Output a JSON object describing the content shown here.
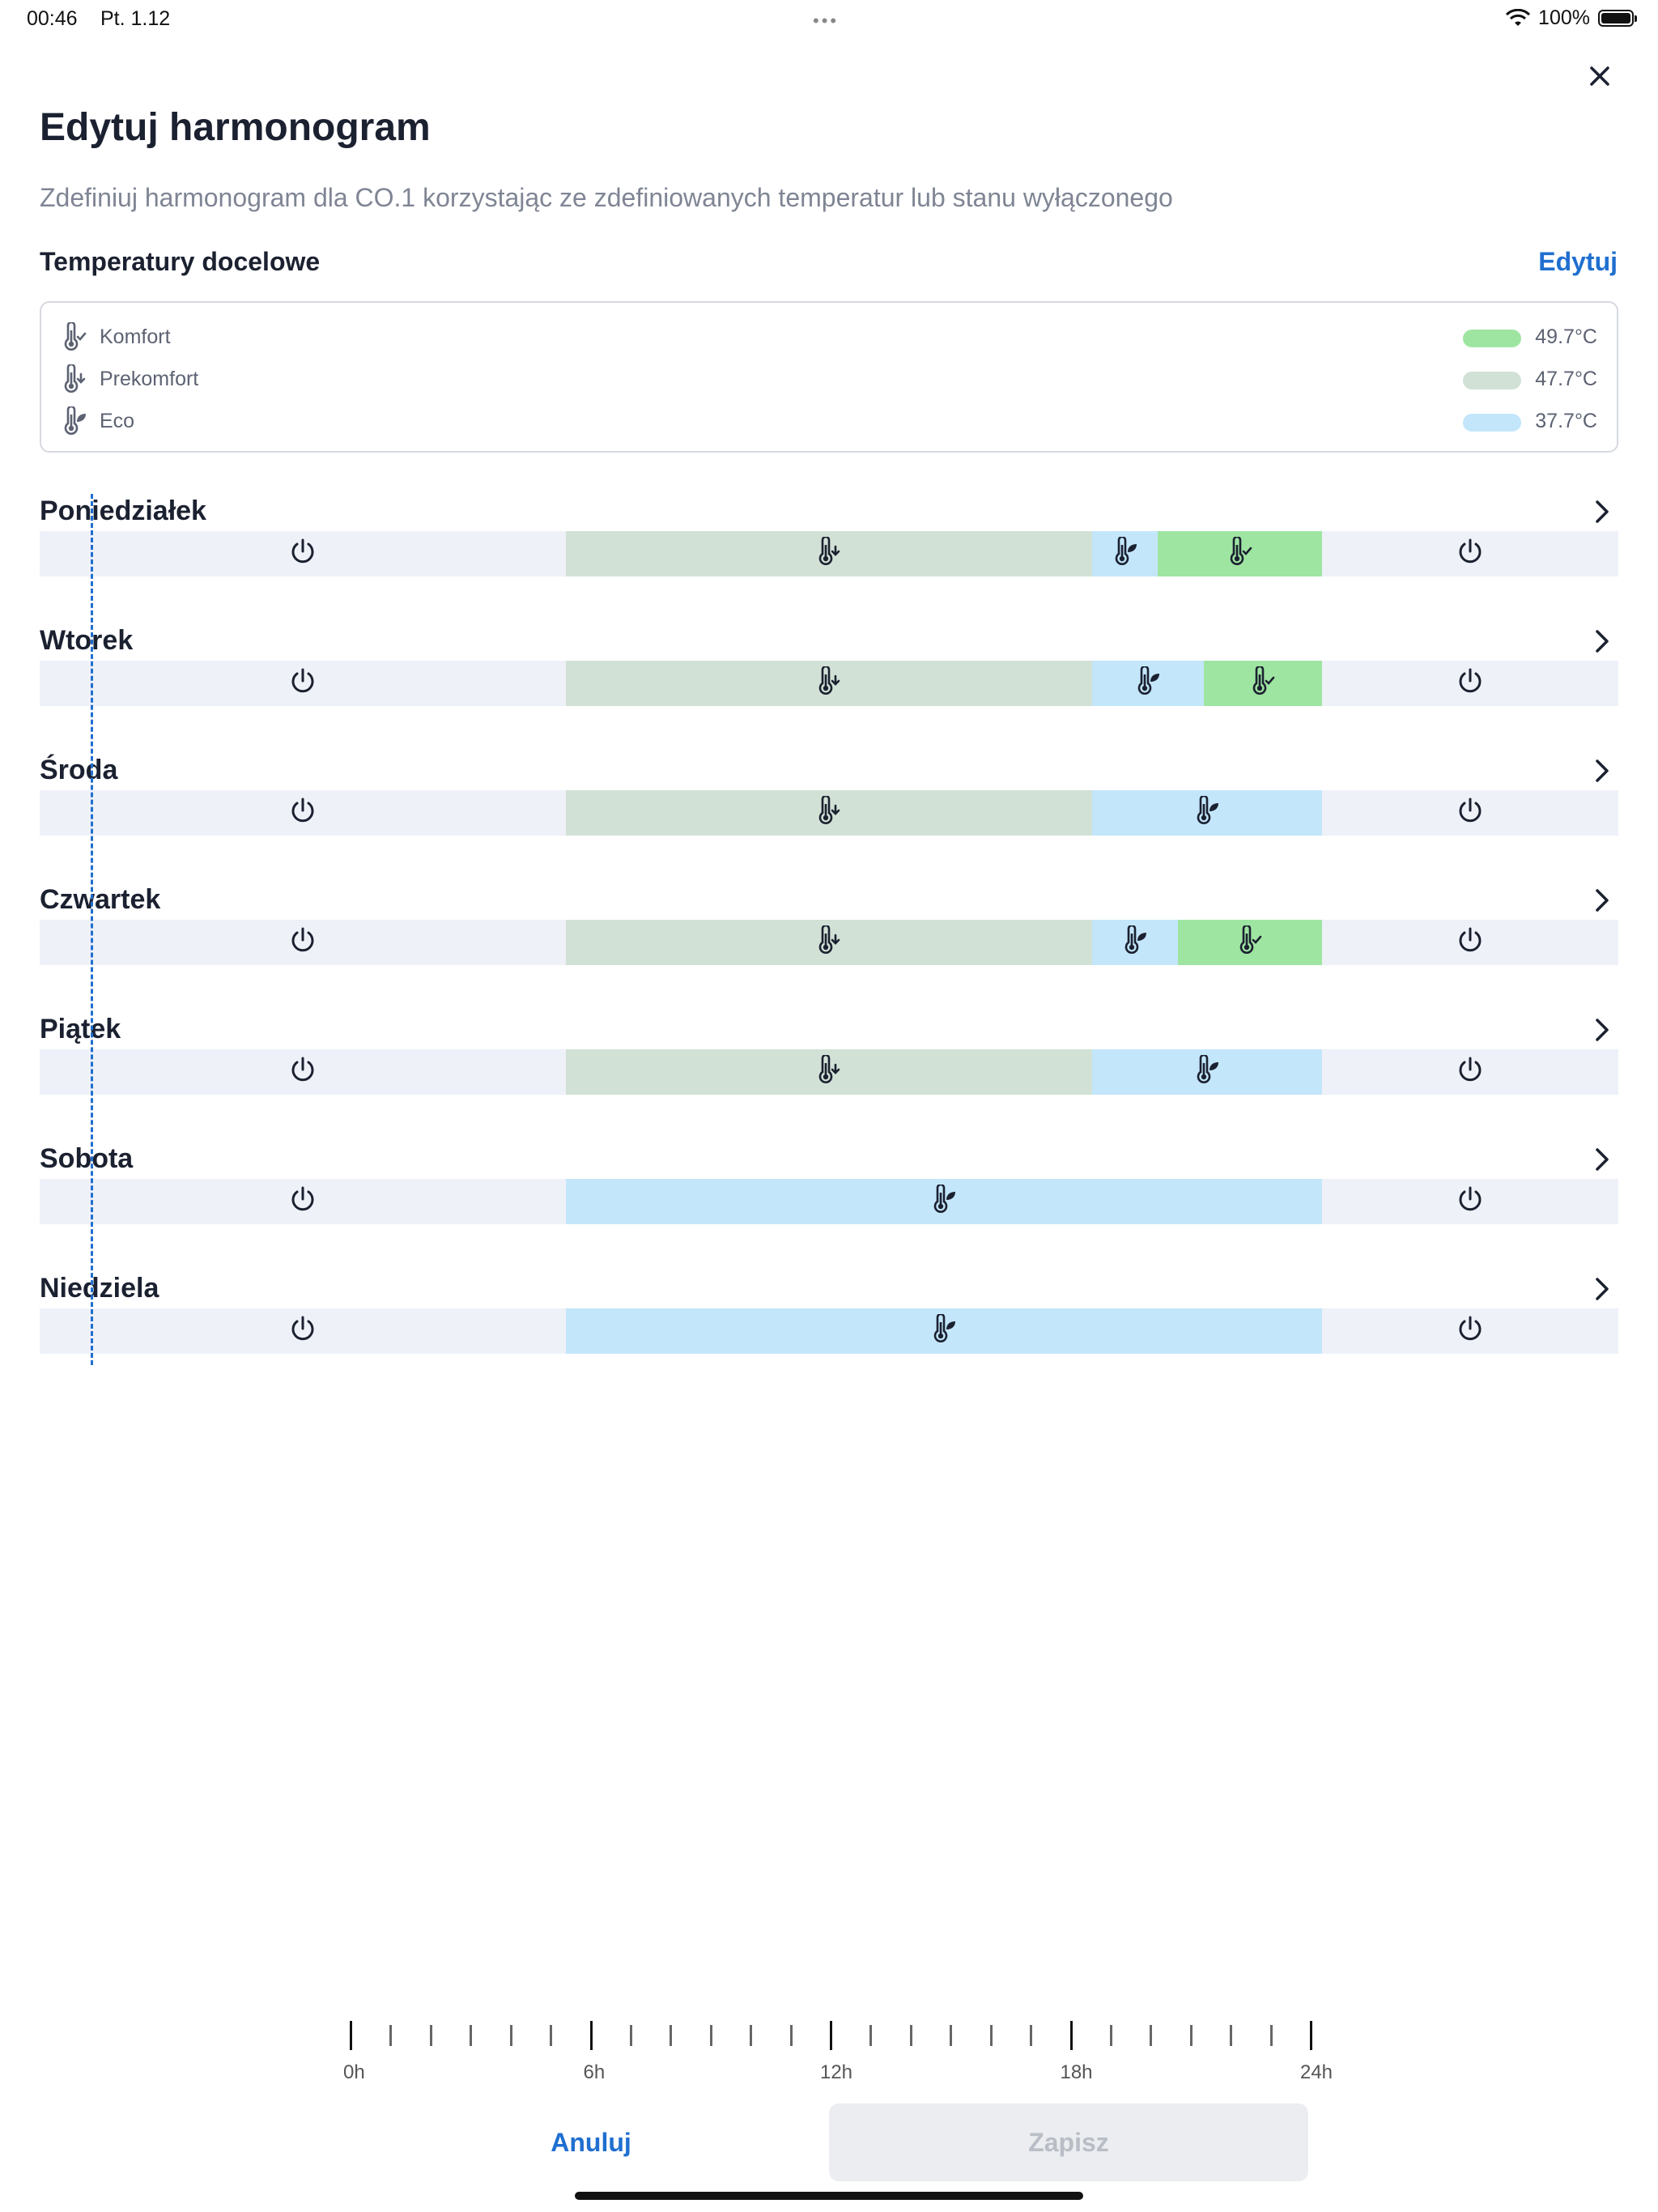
{
  "status_bar": {
    "time": "00:46",
    "date": "Pt. 1.12",
    "battery": "100%"
  },
  "header": {
    "title": "Edytuj harmonogram",
    "subtitle": "Zdefiniuj harmonogram dla CO.1 korzystając ze zdefiniowanych temperatur lub stanu wyłączonego"
  },
  "targets": {
    "title": "Temperatury docelowe",
    "edit_label": "Edytuj",
    "items": [
      {
        "name": "Komfort",
        "value": "49.7°C",
        "color": "#9fe5a2",
        "icon": "thermometer-check-icon"
      },
      {
        "name": "Prekomfort",
        "value": "47.7°C",
        "color": "#d1e1d5",
        "icon": "thermometer-down-icon"
      },
      {
        "name": "Eco",
        "value": "37.7°C",
        "color": "#c3e6fb",
        "icon": "thermometer-leaf-icon"
      }
    ]
  },
  "mode_colors": {
    "off": "#eef1f8",
    "prekomfort": "#d1e1d5",
    "eco": "#c3e6fb",
    "komfort": "#9fe5a2"
  },
  "schedule": [
    {
      "day": "Poniedziałek",
      "segments": [
        {
          "mode": "off",
          "start": 0,
          "end": 8
        },
        {
          "mode": "prekomfort",
          "start": 8,
          "end": 16
        },
        {
          "mode": "eco",
          "start": 16,
          "end": 17
        },
        {
          "mode": "komfort",
          "start": 17,
          "end": 19.5
        },
        {
          "mode": "off",
          "start": 19.5,
          "end": 24
        }
      ]
    },
    {
      "day": "Wtorek",
      "segments": [
        {
          "mode": "off",
          "start": 0,
          "end": 8
        },
        {
          "mode": "prekomfort",
          "start": 8,
          "end": 16
        },
        {
          "mode": "eco",
          "start": 16,
          "end": 17.7
        },
        {
          "mode": "komfort",
          "start": 17.7,
          "end": 19.5
        },
        {
          "mode": "off",
          "start": 19.5,
          "end": 24
        }
      ]
    },
    {
      "day": "Środa",
      "segments": [
        {
          "mode": "off",
          "start": 0,
          "end": 8
        },
        {
          "mode": "prekomfort",
          "start": 8,
          "end": 16
        },
        {
          "mode": "eco",
          "start": 16,
          "end": 19.5
        },
        {
          "mode": "off",
          "start": 19.5,
          "end": 24
        }
      ]
    },
    {
      "day": "Czwartek",
      "segments": [
        {
          "mode": "off",
          "start": 0,
          "end": 8
        },
        {
          "mode": "prekomfort",
          "start": 8,
          "end": 16
        },
        {
          "mode": "eco",
          "start": 16,
          "end": 17.3
        },
        {
          "mode": "komfort",
          "start": 17.3,
          "end": 19.5
        },
        {
          "mode": "off",
          "start": 19.5,
          "end": 24
        }
      ]
    },
    {
      "day": "Piątek",
      "segments": [
        {
          "mode": "off",
          "start": 0,
          "end": 8
        },
        {
          "mode": "prekomfort",
          "start": 8,
          "end": 16
        },
        {
          "mode": "eco",
          "start": 16,
          "end": 19.5
        },
        {
          "mode": "off",
          "start": 19.5,
          "end": 24
        }
      ]
    },
    {
      "day": "Sobota",
      "segments": [
        {
          "mode": "off",
          "start": 0,
          "end": 8
        },
        {
          "mode": "eco",
          "start": 8,
          "end": 19.5
        },
        {
          "mode": "off",
          "start": 19.5,
          "end": 24
        }
      ]
    },
    {
      "day": "Niedziela",
      "segments": [
        {
          "mode": "off",
          "start": 0,
          "end": 8
        },
        {
          "mode": "eco",
          "start": 8,
          "end": 19.5
        },
        {
          "mode": "off",
          "start": 19.5,
          "end": 24
        }
      ]
    }
  ],
  "current_time_hour": 0.78,
  "timeline_labels": [
    "0h",
    "6h",
    "12h",
    "18h",
    "24h"
  ],
  "actions": {
    "cancel_label": "Anuluj",
    "save_label": "Zapisz"
  }
}
